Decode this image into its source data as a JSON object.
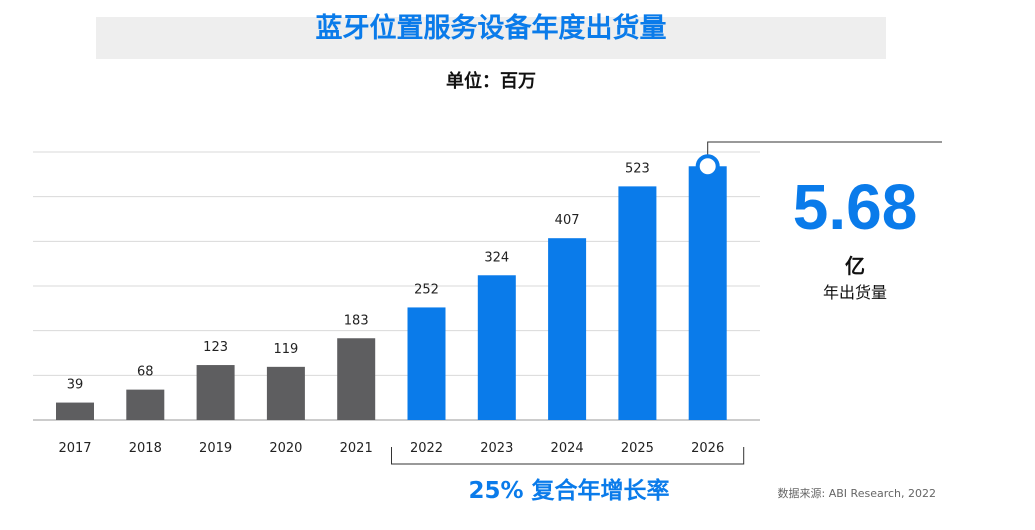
{
  "chart_data": {
    "type": "bar",
    "title": "蓝牙位置服务设备年度出货量",
    "subtitle": "单位：百万",
    "categories": [
      "2017",
      "2018",
      "2019",
      "2020",
      "2021",
      "2022",
      "2023",
      "2024",
      "2025",
      "2026"
    ],
    "values": [
      39,
      68,
      123,
      119,
      183,
      252,
      324,
      407,
      523,
      568
    ],
    "value_labels": [
      "39",
      "68",
      "123",
      "119",
      "183",
      "252",
      "324",
      "407",
      "523",
      ""
    ],
    "ylim": [
      0,
      600
    ],
    "grid": true,
    "colors": {
      "historical": "#5e5e60",
      "forecast": "#0a7bea"
    },
    "forecast_start": "2022",
    "highlight": {
      "value": "5.68",
      "unit": "亿",
      "description": "年出货量"
    },
    "cagr_label": "25% 复合年增长率"
  },
  "source": "数据来源: ABI Research, 2022"
}
